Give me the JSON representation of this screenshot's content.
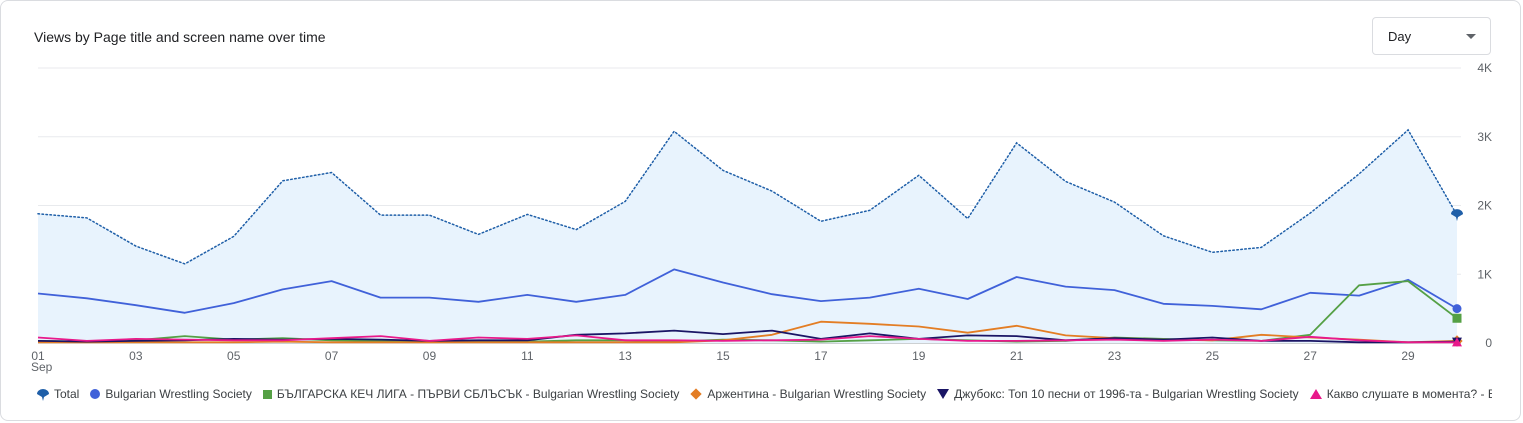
{
  "card": {
    "title": "Views by Page title and screen name over time",
    "granularity": {
      "selected": "Day",
      "icon": "chevron-down-icon"
    }
  },
  "chart_data": {
    "type": "line",
    "title": "Views by Page title and screen name over time",
    "xlabel": "",
    "ylabel": "",
    "ylim": [
      0,
      4000
    ],
    "y_ticks": [
      "0",
      "1K",
      "2K",
      "3K",
      "4K"
    ],
    "y_tick_values": [
      0,
      1000,
      2000,
      3000,
      4000
    ],
    "y_axis_side": "right",
    "grid": true,
    "legend_placement": "bottom",
    "x": [
      1,
      2,
      3,
      4,
      5,
      6,
      7,
      8,
      9,
      10,
      11,
      12,
      13,
      14,
      15,
      16,
      17,
      18,
      19,
      20,
      21,
      22,
      23,
      24,
      25,
      26,
      27,
      28,
      29,
      30
    ],
    "x_ticks": [
      "01",
      "03",
      "05",
      "07",
      "09",
      "11",
      "13",
      "15",
      "17",
      "19",
      "21",
      "23",
      "25",
      "27",
      "29"
    ],
    "x_tick_values": [
      1,
      3,
      5,
      7,
      9,
      11,
      13,
      15,
      17,
      19,
      21,
      23,
      25,
      27,
      29
    ],
    "x_month_label": "Sep",
    "series": [
      {
        "name": "Total",
        "style": "dotted-area",
        "color": "#1f5fa8",
        "fill": "#e8f3fd",
        "marker": "pin",
        "values": [
          1880,
          1820,
          1410,
          1150,
          1550,
          2360,
          2480,
          1860,
          1860,
          1580,
          1870,
          1650,
          2060,
          3080,
          2510,
          2210,
          1770,
          1930,
          2440,
          1810,
          2910,
          2350,
          2050,
          1560,
          1320,
          1390,
          1890,
          2460,
          3100,
          1860
        ]
      },
      {
        "name": "Bulgarian Wrestling Society",
        "color": "#4061d9",
        "marker": "dot",
        "values": [
          720,
          650,
          550,
          440,
          580,
          780,
          900,
          660,
          660,
          600,
          700,
          600,
          700,
          1070,
          880,
          710,
          610,
          660,
          790,
          640,
          960,
          820,
          770,
          570,
          540,
          490,
          730,
          690,
          920,
          500
        ]
      },
      {
        "name": "БЪЛГАРСКА КЕЧ ЛИГА - ПЪРВИ СБЛЪСЪК - Bulgarian Wrestling Society",
        "color": "#55a045",
        "marker": "square",
        "values": [
          30,
          20,
          40,
          100,
          50,
          70,
          40,
          30,
          20,
          30,
          20,
          40,
          40,
          20,
          50,
          40,
          20,
          40,
          60,
          40,
          20,
          30,
          80,
          60,
          40,
          30,
          120,
          840,
          900,
          360
        ]
      },
      {
        "name": "Аржентина - Bulgarian Wrestling Society",
        "color": "#e37d24",
        "marker": "diamond",
        "values": [
          10,
          10,
          10,
          10,
          10,
          20,
          10,
          10,
          10,
          10,
          10,
          10,
          10,
          10,
          40,
          120,
          310,
          280,
          240,
          150,
          250,
          110,
          70,
          50,
          40,
          120,
          80,
          50,
          10,
          30
        ]
      },
      {
        "name": "Джубокс: Топ 10 песни от 1996-та - Bulgarian Wrestling Society",
        "color": "#1a1565",
        "marker": "tri-down",
        "values": [
          30,
          20,
          30,
          40,
          60,
          50,
          60,
          50,
          30,
          40,
          40,
          120,
          140,
          180,
          130,
          180,
          60,
          140,
          60,
          110,
          100,
          40,
          70,
          50,
          80,
          30,
          30,
          10,
          10,
          20
        ]
      },
      {
        "name": "Какво слушате в момента? - Bulgarian Wrestling Society",
        "color": "#e8198b",
        "marker": "tri-up",
        "values": [
          80,
          30,
          60,
          50,
          40,
          40,
          70,
          100,
          30,
          80,
          60,
          110,
          40,
          40,
          30,
          40,
          50,
          100,
          60,
          30,
          30,
          40,
          50,
          30,
          50,
          30,
          90,
          40,
          10,
          10
        ]
      }
    ]
  }
}
